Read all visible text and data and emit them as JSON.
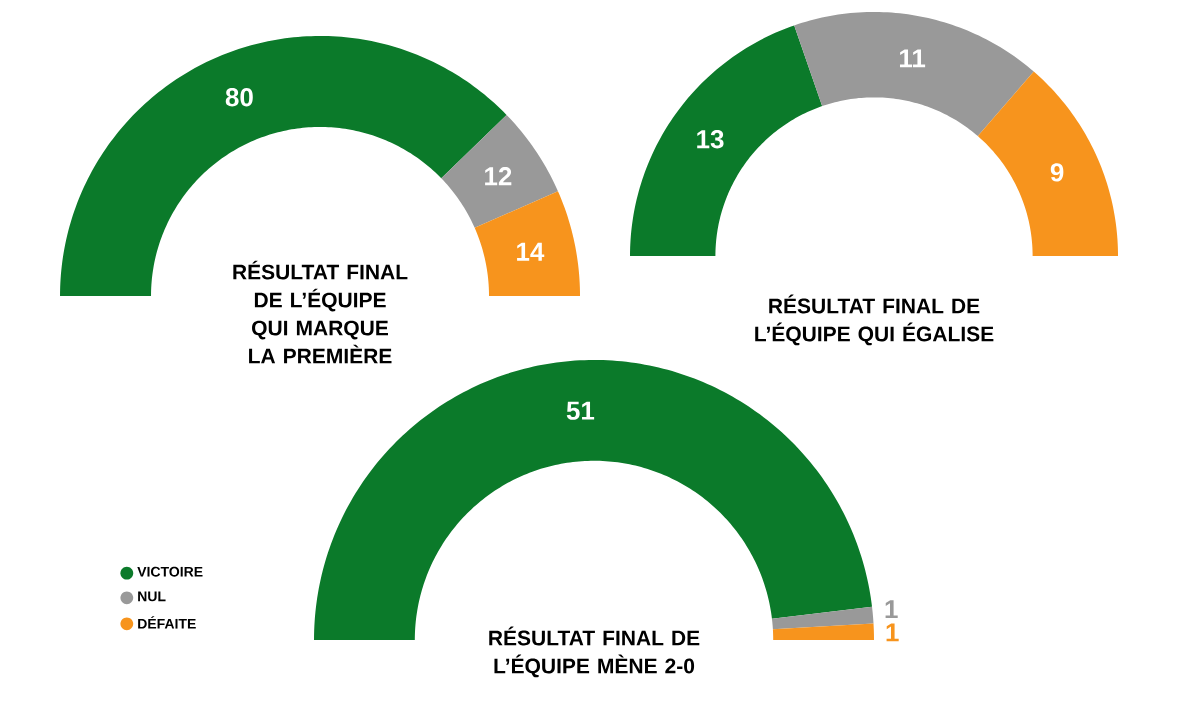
{
  "chart_data": [
    {
      "type": "donut",
      "title": "RÉSULTAT FINAL DE L’ÉQUIPE QUI MARQUE LA PREMIÈRE",
      "categories": [
        null,
        null,
        null
      ],
      "values": [
        80,
        12,
        14
      ],
      "colors": [
        "#0b7a2a",
        "#999999",
        "#f7941d"
      ],
      "data_labels": true
    },
    {
      "type": "donut",
      "title": "RÉSULTAT FINAL DE L’ÉQUIPE QUI ÉGALISE",
      "categories": [
        null,
        null,
        null
      ],
      "values": [
        13,
        11,
        9
      ],
      "colors": [
        "#0b7a2a",
        "#999999",
        "#f7941d"
      ],
      "data_labels": true
    },
    {
      "type": "donut",
      "title": "RÉSULTAT FINAL DE L’ÉQUIPE MÈNE 2-0",
      "categories": [
        "VICTOIRE",
        "NUL",
        "DÉFAITE"
      ],
      "values": [
        51,
        1,
        1
      ],
      "colors": [
        "#0b7a2a",
        "#999999",
        "#f7941d"
      ],
      "data_labels": true,
      "legend": "left"
    }
  ]
}
